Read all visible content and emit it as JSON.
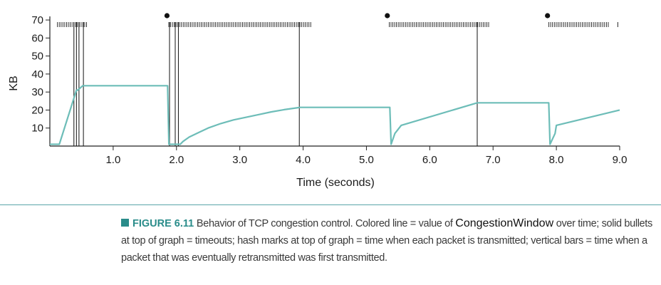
{
  "chart_data": {
    "type": "line",
    "xlabel": "Time (seconds)",
    "ylabel": "KB",
    "xlim": [
      0,
      9.0
    ],
    "ylim": [
      0,
      72
    ],
    "xticks": [
      1.0,
      2.0,
      3.0,
      4.0,
      5.0,
      6.0,
      7.0,
      8.0,
      9.0
    ],
    "xtick_labels": [
      "1.0",
      "2.0",
      "3.0",
      "4.0",
      "5.0",
      "6.0",
      "7.0",
      "8.0",
      "9.0"
    ],
    "yticks": [
      10,
      20,
      30,
      40,
      50,
      60,
      70
    ],
    "ytick_labels": [
      "10",
      "20",
      "30",
      "40",
      "50",
      "60",
      "70"
    ],
    "series": [
      {
        "color": "#6dbdb8",
        "x": [
          0.0,
          0.15,
          0.42,
          0.44,
          0.52,
          0.54,
          1.86,
          1.88,
          2.06,
          2.1,
          2.2,
          2.35,
          2.5,
          2.7,
          2.9,
          3.1,
          3.3,
          3.5,
          3.7,
          3.9,
          3.95,
          5.37,
          5.39,
          5.45,
          5.55,
          6.75,
          6.78,
          7.88,
          7.9,
          7.98,
          8.0,
          9.0
        ],
        "y": [
          1,
          1,
          31,
          31,
          33.5,
          33.5,
          33.5,
          1,
          1,
          2.5,
          5,
          7.5,
          10,
          12.5,
          14.5,
          16,
          17.5,
          19,
          20.2,
          21.2,
          21.5,
          21.5,
          1,
          7,
          11.5,
          24,
          24,
          24,
          1,
          7,
          11.5,
          20
        ]
      }
    ],
    "timeouts": [
      1.85,
      5.33,
      7.86
    ],
    "retransmit_bars": [
      0.38,
      0.42,
      0.46,
      0.53,
      1.89,
      1.98,
      2.03,
      3.94,
      6.75
    ],
    "hash_segments": [
      {
        "start": 0.12,
        "end": 0.58,
        "count": 17
      },
      {
        "start": 1.88,
        "end": 4.12,
        "count": 80
      },
      {
        "start": 5.36,
        "end": 6.93,
        "count": 56
      },
      {
        "start": 7.88,
        "end": 8.82,
        "count": 33
      }
    ],
    "hash_end_marks": [
      8.97
    ]
  },
  "caption": {
    "label": "FIGURE 6.11",
    "text_1": " Behavior of TCP congestion control. Colored line = value of ",
    "code": "CongestionWindow",
    "text_2": " over time; solid bullets at top of graph = timeouts; hash marks at top of graph = time when each packet is transmitted; vertical bars = time when a packet that was eventually retransmitted was first transmitted."
  }
}
